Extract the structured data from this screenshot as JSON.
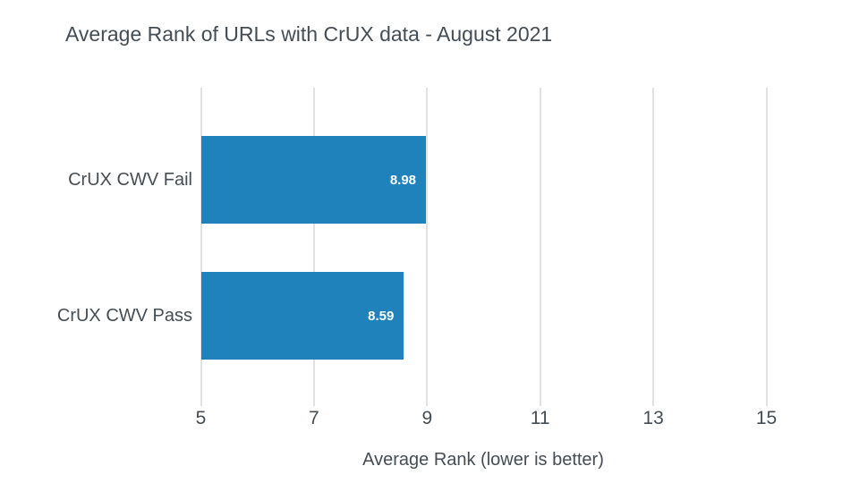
{
  "chart_data": {
    "type": "bar",
    "orientation": "horizontal",
    "title": "Average Rank of URLs with CrUX data - August 2021",
    "xlabel": "Average Rank (lower is better)",
    "ylabel": "",
    "categories": [
      "CrUX CWV Fail",
      "CrUX CWV Pass"
    ],
    "values": [
      8.98,
      8.59
    ],
    "value_labels": [
      "8.98",
      "8.59"
    ],
    "xtick_values": [
      5,
      7,
      9,
      11,
      13,
      15
    ],
    "xtick_labels": [
      "5",
      "7",
      "9",
      "11",
      "13",
      "15"
    ],
    "xlim": [
      5,
      15.6
    ],
    "grid": true,
    "legend": false,
    "colors": {
      "bar": "#1f82ba",
      "value_label": "#ffffff",
      "text": "#454d54",
      "gridline": "#e2e2e2",
      "background": "#ffffff"
    }
  }
}
